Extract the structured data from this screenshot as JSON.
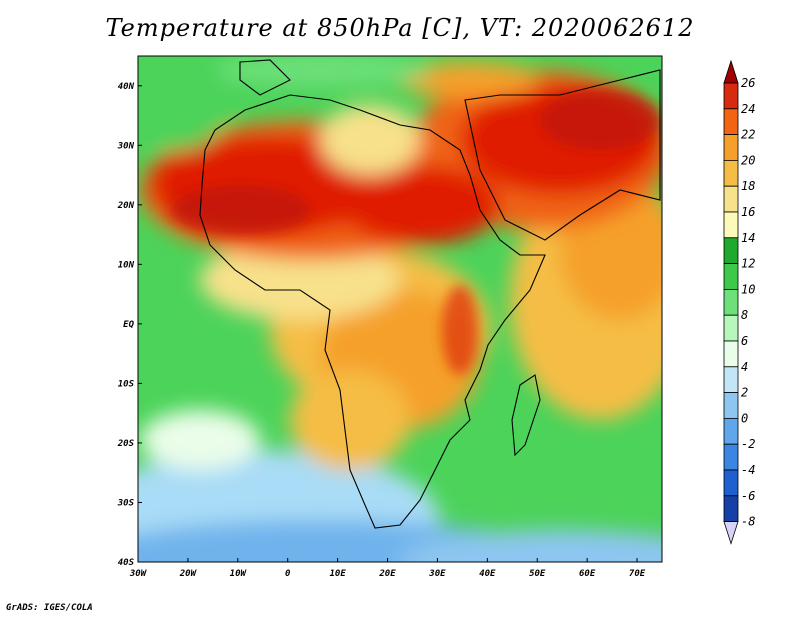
{
  "title": "Temperature at 850hPa [C], VT: 2020062612",
  "footer": "GrADS: IGES/COLA",
  "map": {
    "lon_range": [
      -30,
      75
    ],
    "lat_range": [
      -40,
      45
    ],
    "lon_ticks": [
      "30W",
      "20W",
      "10W",
      "0",
      "10E",
      "20E",
      "30E",
      "40E",
      "50E",
      "60E",
      "70E"
    ],
    "lat_ticks": [
      "40N",
      "30N",
      "20N",
      "10N",
      "EQ",
      "10S",
      "20S",
      "30S",
      "40S"
    ]
  },
  "colorbar": {
    "labels": [
      "26",
      "24",
      "22",
      "20",
      "18",
      "16",
      "14",
      "12",
      "10",
      "8",
      "6",
      "4",
      "2",
      "0",
      "-2",
      "-4",
      "-6",
      "-8"
    ],
    "colors": [
      "#a00000",
      "#d82a0e",
      "#f06414",
      "#f5a02a",
      "#f5bd45",
      "#f8e18b",
      "#fdfab9",
      "#1fa92e",
      "#3dc94a",
      "#6ee07a",
      "#b6f7bb",
      "#eafde9",
      "#c2e5f7",
      "#8dc6f0",
      "#5fa7ea",
      "#3b86e2",
      "#1f5fd0",
      "#1440a8",
      "#0e1f78",
      "#06004a"
    ]
  },
  "colors": {
    "hot": "#e01a06",
    "warm": "#f5a02a",
    "mild": "#f8e18b",
    "cool": "#6ee07a",
    "cold": "#8dc6f0",
    "land_line": "#000000"
  }
}
